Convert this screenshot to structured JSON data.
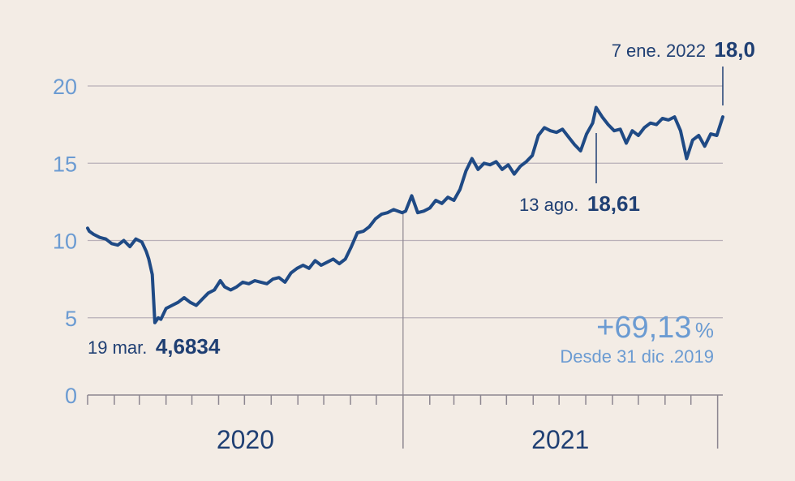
{
  "colors": {
    "background": "#f3ece5",
    "line": "#1f4a85",
    "axis_text": "#6b9bd2",
    "label_dark": "#1f3f73",
    "grid": "#b9b0b8"
  },
  "chart_data": {
    "type": "line",
    "title": "",
    "xlabel": "",
    "ylabel": "",
    "ylim": [
      0,
      20
    ],
    "yticks": [
      "0",
      "5",
      "10",
      "15",
      "20"
    ],
    "grid": true,
    "x_range": [
      "2020-01-01",
      "2022-01-07"
    ],
    "x_year_labels": [
      "2020",
      "2021"
    ],
    "series": [
      {
        "name": "",
        "x": [
          "2020-01-01",
          "2020-01-03",
          "2020-01-08",
          "2020-01-15",
          "2020-01-22",
          "2020-01-29",
          "2020-02-05",
          "2020-02-12",
          "2020-02-19",
          "2020-02-26",
          "2020-03-04",
          "2020-03-09",
          "2020-03-12",
          "2020-03-16",
          "2020-03-19",
          "2020-03-23",
          "2020-03-26",
          "2020-04-01",
          "2020-04-08",
          "2020-04-15",
          "2020-04-22",
          "2020-04-29",
          "2020-05-06",
          "2020-05-13",
          "2020-05-20",
          "2020-05-27",
          "2020-06-03",
          "2020-06-08",
          "2020-06-15",
          "2020-06-22",
          "2020-06-29",
          "2020-07-06",
          "2020-07-13",
          "2020-07-20",
          "2020-07-27",
          "2020-08-03",
          "2020-08-10",
          "2020-08-17",
          "2020-08-24",
          "2020-08-31",
          "2020-09-07",
          "2020-09-14",
          "2020-09-21",
          "2020-09-28",
          "2020-10-05",
          "2020-10-12",
          "2020-10-19",
          "2020-10-26",
          "2020-11-02",
          "2020-11-09",
          "2020-11-16",
          "2020-11-23",
          "2020-11-30",
          "2020-12-07",
          "2020-12-14",
          "2020-12-21",
          "2020-12-31",
          "2021-01-04",
          "2021-01-11",
          "2021-01-18",
          "2021-01-25",
          "2021-02-01",
          "2021-02-08",
          "2021-02-15",
          "2021-02-22",
          "2021-03-01",
          "2021-03-08",
          "2021-03-15",
          "2021-03-22",
          "2021-03-29",
          "2021-04-05",
          "2021-04-12",
          "2021-04-19",
          "2021-04-26",
          "2021-05-03",
          "2021-05-10",
          "2021-05-17",
          "2021-05-24",
          "2021-05-31",
          "2021-06-07",
          "2021-06-14",
          "2021-06-21",
          "2021-06-28",
          "2021-07-05",
          "2021-07-12",
          "2021-07-19",
          "2021-07-26",
          "2021-08-02",
          "2021-08-09",
          "2021-08-13",
          "2021-08-20",
          "2021-08-27",
          "2021-09-03",
          "2021-09-10",
          "2021-09-17",
          "2021-09-24",
          "2021-10-01",
          "2021-10-08",
          "2021-10-15",
          "2021-10-22",
          "2021-10-29",
          "2021-11-05",
          "2021-11-12",
          "2021-11-19",
          "2021-11-26",
          "2021-12-03",
          "2021-12-10",
          "2021-12-17",
          "2021-12-24",
          "2021-12-31",
          "2022-01-07"
        ],
        "values": [
          10.8,
          10.6,
          10.4,
          10.2,
          10.1,
          9.8,
          9.7,
          10.0,
          9.6,
          10.1,
          9.9,
          9.3,
          8.8,
          7.8,
          4.68,
          5.0,
          4.9,
          5.6,
          5.8,
          6.0,
          6.3,
          6.0,
          5.8,
          6.2,
          6.6,
          6.8,
          7.4,
          7.0,
          6.8,
          7.0,
          7.3,
          7.2,
          7.4,
          7.3,
          7.2,
          7.5,
          7.6,
          7.3,
          7.9,
          8.2,
          8.4,
          8.2,
          8.7,
          8.4,
          8.6,
          8.8,
          8.5,
          8.8,
          9.6,
          10.5,
          10.6,
          10.9,
          11.4,
          11.7,
          11.8,
          12.0,
          11.8,
          11.9,
          12.9,
          11.8,
          11.9,
          12.1,
          12.6,
          12.4,
          12.8,
          12.6,
          13.3,
          14.5,
          15.3,
          14.6,
          15.0,
          14.9,
          15.1,
          14.6,
          14.9,
          14.3,
          14.8,
          15.1,
          15.5,
          16.8,
          17.3,
          17.1,
          17.0,
          17.2,
          16.7,
          16.2,
          15.8,
          16.9,
          17.6,
          18.61,
          18.0,
          17.5,
          17.1,
          17.2,
          16.3,
          17.1,
          16.8,
          17.3,
          17.6,
          17.5,
          17.9,
          17.8,
          18.0,
          17.1,
          15.3,
          16.5,
          16.8,
          16.1,
          16.9,
          16.8,
          18.0
        ]
      }
    ],
    "annotations": [
      {
        "date": "19 mar.",
        "value": "4,6834"
      },
      {
        "date": "13 ago.",
        "value": "18,61"
      },
      {
        "date": "7 ene. 2022",
        "value": "18,0"
      }
    ]
  },
  "summary": {
    "change_number": "+69,13",
    "change_pct_sign": "%",
    "since": "Desde 31 dic .2019"
  }
}
